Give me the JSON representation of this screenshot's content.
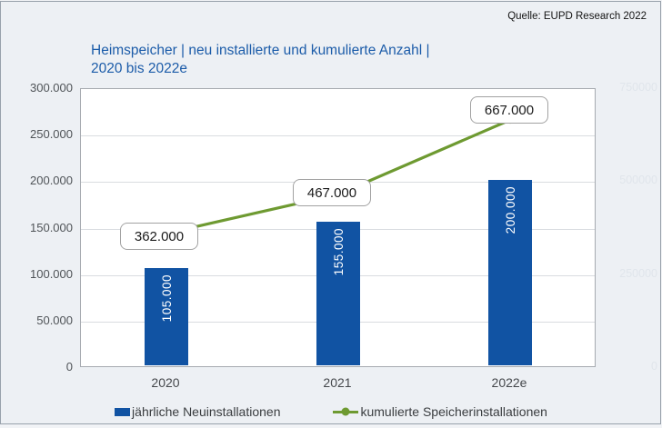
{
  "source_note": "Quelle: EUPD Research 2022",
  "title": {
    "line1": "Heimspeicher | neu installierte und kumulierte Anzahl |",
    "line2": "2020 bis 2022e"
  },
  "chart_data": {
    "type": "bar",
    "subtype": "bar-line-combo",
    "title": "Heimspeicher | neu installierte und kumulierte Anzahl | 2020 bis 2022e",
    "categories": [
      "2020",
      "2021",
      "2022e"
    ],
    "series": [
      {
        "name": "jährliche Neuinstallationen",
        "type": "bar",
        "axis": "primary",
        "values": [
          105000,
          155000,
          200000
        ],
        "data_labels": [
          "105.000",
          "155.000",
          "200.000"
        ],
        "color": "#1153a3"
      },
      {
        "name": "kumulierte Speicherinstallationen",
        "type": "line",
        "axis": "secondary",
        "values": [
          362000,
          467000,
          667000
        ],
        "data_labels": [
          "362.000",
          "467.000",
          "667.000"
        ],
        "color": "#6e9a31"
      }
    ],
    "primary_y_axis": {
      "min": 0,
      "max": 300000,
      "tick_labels": [
        "300.000",
        "250.000",
        "200.000",
        "150.000",
        "100.000",
        "50.000",
        "0"
      ]
    },
    "secondary_y_axis": {
      "min": 0,
      "max": 750000,
      "tick_labels": [
        "750000",
        "500000",
        "250000",
        "0"
      ],
      "style": "faint"
    },
    "grid": "horizontal",
    "legend_position": "bottom"
  },
  "colors": {
    "bar_blue": "#1153a3",
    "line_green": "#6e9a31",
    "title_blue": "#1c5ca9",
    "background": "#edf0f4",
    "plot_background": "#ffffff"
  }
}
